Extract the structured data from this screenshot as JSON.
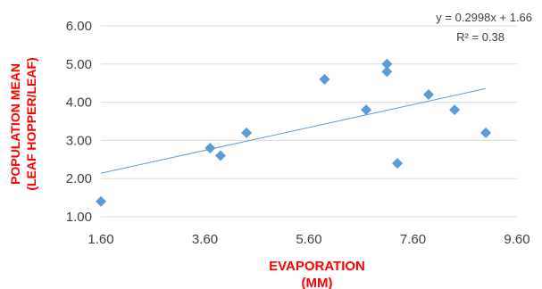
{
  "chart_data": {
    "type": "scatter",
    "title": "",
    "xlabel": "EVAPORATION",
    "xlabel_line2": "(MM)",
    "ylabel": "POPULATION MEAN",
    "ylabel_line2": "(LEAF HOPPER/LEAF)",
    "xlim": [
      1.6,
      9.6
    ],
    "ylim": [
      1.0,
      6.0
    ],
    "x_ticks": [
      "1.60",
      "3.60",
      "5.60",
      "7.60",
      "9.60"
    ],
    "y_ticks": [
      "1.00",
      "2.00",
      "3.00",
      "4.00",
      "5.00",
      "6.00"
    ],
    "grid": "horizontal",
    "series": [
      {
        "points": [
          {
            "x": 1.6,
            "y": 1.4
          },
          {
            "x": 3.7,
            "y": 2.8
          },
          {
            "x": 3.9,
            "y": 2.6
          },
          {
            "x": 4.4,
            "y": 3.2
          },
          {
            "x": 5.9,
            "y": 4.6
          },
          {
            "x": 6.7,
            "y": 3.8
          },
          {
            "x": 7.1,
            "y": 5.0
          },
          {
            "x": 7.1,
            "y": 4.8
          },
          {
            "x": 7.3,
            "y": 2.4
          },
          {
            "x": 7.9,
            "y": 4.2
          },
          {
            "x": 8.4,
            "y": 3.8
          },
          {
            "x": 9.0,
            "y": 3.2
          }
        ]
      }
    ],
    "trendline": {
      "type": "linear",
      "slope": 0.2998,
      "intercept": 1.66,
      "x_range": [
        1.6,
        9.0
      ],
      "equation": "y = 0.2998x + 1.66",
      "r_squared": "R² = 0.38"
    },
    "colors": {
      "marker": "#5b9bd5",
      "trendline": "#5b9bd5",
      "gridline": "#d9d9d9",
      "axis_title": "#ff0000",
      "tick_label": "#404040"
    }
  }
}
